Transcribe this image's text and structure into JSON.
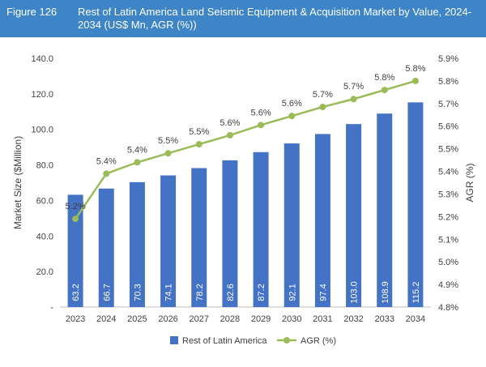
{
  "figure": {
    "number": "Figure 126",
    "title": "Rest of Latin America Land Seismic Equipment & Acquisition Market by Value, 2024-2034 (US$ Mn, AGR (%))"
  },
  "colors": {
    "header_bg": "#3d85c6",
    "bar": "#4472c4",
    "line": "#9bbb59"
  },
  "chart_data": {
    "type": "bar",
    "categories": [
      "2023",
      "2024",
      "2025",
      "2026",
      "2027",
      "2028",
      "2029",
      "2030",
      "2031",
      "2032",
      "2033",
      "2034"
    ],
    "series": [
      {
        "name": "Rest of Latin America",
        "type": "bar",
        "axis": "left",
        "values": [
          63.2,
          66.7,
          70.3,
          74.1,
          78.2,
          82.6,
          87.2,
          92.1,
          97.4,
          103.0,
          108.9,
          115.2
        ],
        "labels": [
          "63.2",
          "66.7",
          "70.3",
          "74.1",
          "78.2",
          "82.6",
          "87.2",
          "92.1",
          "97.4",
          "103.0",
          "108.9",
          "115.2"
        ]
      },
      {
        "name": "AGR (%)",
        "type": "line",
        "axis": "right",
        "values": [
          5.19,
          5.39,
          5.44,
          5.48,
          5.52,
          5.56,
          5.605,
          5.645,
          5.685,
          5.72,
          5.76,
          5.8
        ],
        "labels": [
          "5.2%",
          "5.4%",
          "5.4%",
          "5.5%",
          "5.5%",
          "5.6%",
          "5.6%",
          "5.6%",
          "5.7%",
          "5.7%",
          "5.8%",
          "5.8%"
        ]
      }
    ],
    "ylabel": "Market Size ($Million)",
    "y2label": "AGR (%)",
    "ylim": [
      0,
      140
    ],
    "y2lim": [
      4.8,
      5.9
    ],
    "yticks": [
      "-",
      "20.0",
      "40.0",
      "60.0",
      "80.0",
      "100.0",
      "120.0",
      "140.0"
    ],
    "y2ticks": [
      "4.8%",
      "4.9%",
      "5.0%",
      "5.1%",
      "5.2%",
      "5.3%",
      "5.4%",
      "5.5%",
      "5.6%",
      "5.7%",
      "5.8%",
      "5.9%"
    ],
    "legend": [
      "Rest of Latin America",
      "AGR (%)"
    ],
    "legend_position": "bottom",
    "grid": false
  }
}
